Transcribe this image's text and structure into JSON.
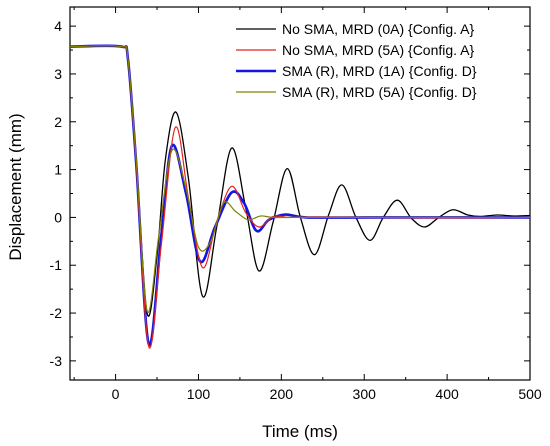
{
  "chart_data": {
    "type": "line",
    "xlabel": "Time (ms)",
    "ylabel": "Displacement (mm)",
    "xlim": [
      -55,
      500
    ],
    "ylim": [
      -3.4,
      4.4
    ],
    "x_ticks": [
      0,
      100,
      200,
      300,
      400,
      500
    ],
    "y_ticks": [
      -3,
      -2,
      -1,
      0,
      1,
      2,
      3,
      4
    ],
    "x_tick_labels": [
      "0",
      "100",
      "200",
      "300",
      "400",
      "500"
    ],
    "y_tick_labels": [
      "-3",
      "-2",
      "-1",
      "0",
      "1",
      "2",
      "3",
      "4"
    ],
    "grid": false,
    "legend_position": "top-right",
    "series": [
      {
        "name": "No SMA, MRD (0A) {Config. A}",
        "color": "#000000",
        "x": [
          -55,
          8,
          15,
          25,
          38,
          50,
          60,
          73,
          88,
          105,
          122,
          140,
          157,
          173,
          190,
          207,
          223,
          240,
          257,
          273,
          290,
          307,
          323,
          340,
          357,
          373,
          390,
          407,
          425,
          440,
          460,
          480,
          500
        ],
        "y": [
          3.57,
          3.57,
          3.3,
          1.2,
          -2.0,
          -0.8,
          1.2,
          2.2,
          0.8,
          -1.65,
          -0.2,
          1.45,
          0.2,
          -1.12,
          -0.1,
          1.02,
          0.0,
          -0.78,
          0.05,
          0.68,
          0.0,
          -0.48,
          0.0,
          0.36,
          -0.02,
          -0.2,
          0.0,
          0.16,
          0.05,
          0.02,
          0.05,
          0.03,
          0.04
        ]
      },
      {
        "name": "No SMA, MRD (5A) {Config. A}",
        "color": "#e8231f",
        "x": [
          -55,
          8,
          15,
          25,
          40,
          55,
          72,
          88,
          105,
          122,
          140,
          157,
          173,
          190,
          210,
          240,
          300,
          400,
          500
        ],
        "y": [
          3.57,
          3.57,
          3.3,
          1.1,
          -2.7,
          -0.6,
          1.88,
          0.4,
          -1.05,
          -0.1,
          0.65,
          0.1,
          -0.2,
          0.02,
          0.0,
          0.01,
          0.0,
          -0.01,
          0.0
        ]
      },
      {
        "name": "SMA (R), MRD (1A) {Config. D}",
        "color": "#1515e0",
        "x": [
          -55,
          8,
          15,
          25,
          40,
          55,
          68,
          85,
          102,
          120,
          140,
          155,
          170,
          185,
          205,
          230,
          300,
          400,
          500
        ],
        "y": [
          3.57,
          3.57,
          3.3,
          1.1,
          -2.65,
          -0.4,
          1.5,
          0.5,
          -0.92,
          -0.2,
          0.52,
          0.3,
          -0.28,
          -0.05,
          0.06,
          0.0,
          0.0,
          0.0,
          0.0
        ]
      },
      {
        "name": "SMA (R), MRD (5A) {Config. D}",
        "color": "#808000",
        "x": [
          -55,
          8,
          15,
          25,
          38,
          52,
          68,
          85,
          100,
          115,
          130,
          145,
          160,
          175,
          190,
          220,
          300,
          400,
          500
        ],
        "y": [
          3.57,
          3.57,
          3.3,
          1.2,
          -1.95,
          -0.4,
          1.4,
          0.6,
          -0.62,
          -0.5,
          0.3,
          0.12,
          -0.05,
          0.03,
          0.0,
          0.0,
          0.0,
          0.0,
          0.0
        ]
      }
    ]
  }
}
